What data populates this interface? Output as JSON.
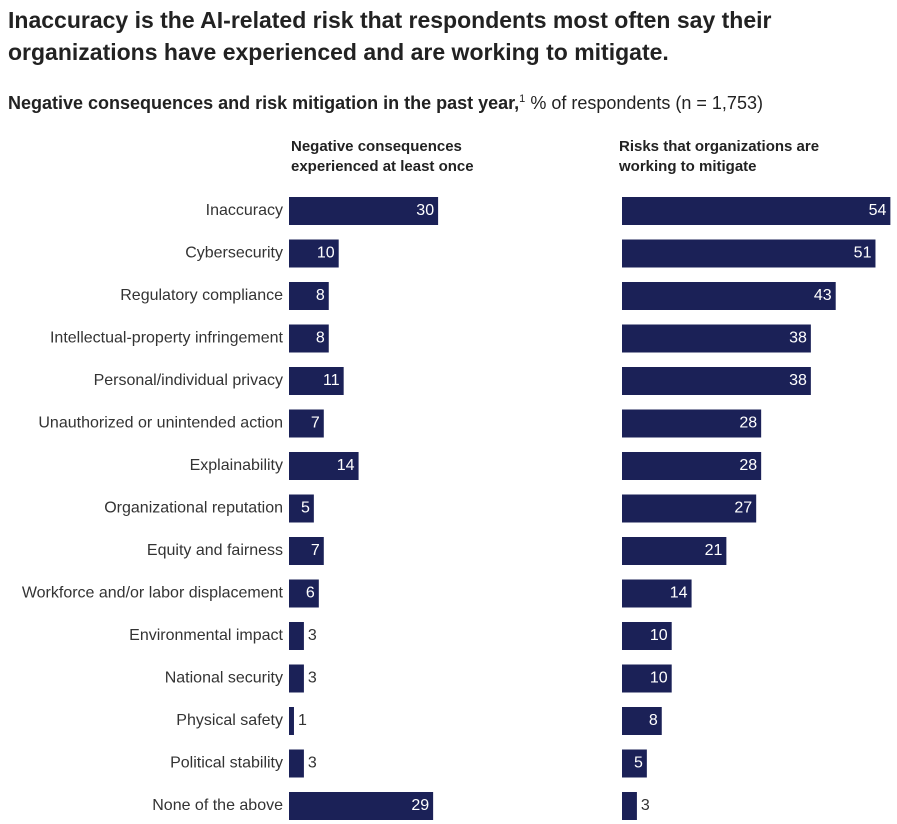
{
  "chart_data": {
    "type": "bar",
    "orientation": "horizontal",
    "title": "Inaccuracy is the AI-related risk that respondents most often say their organizations have experienced and are working to mitigate.",
    "subtitle": "Negative consequences and risk mitigation in the past year,",
    "subtitle_footnote": "1",
    "subtitle_units": "% of respondents (n = 1,753)",
    "categories": [
      "Inaccuracy",
      "Cybersecurity",
      "Regulatory compliance",
      "Intellectual-property infringement",
      "Personal/individual privacy",
      "Unauthorized or unintended action",
      "Explainability",
      "Organizational reputation",
      "Equity and fairness",
      "Workforce and/or labor displacement",
      "Environmental impact",
      "National security",
      "Physical safety",
      "Political stability",
      "None of the above"
    ],
    "series": [
      {
        "name": "Negative consequences experienced at least once",
        "color": "#1b2157",
        "values": [
          30,
          10,
          8,
          8,
          11,
          7,
          14,
          5,
          7,
          6,
          3,
          3,
          1,
          3,
          29
        ]
      },
      {
        "name": "Risks that organizations are working to mitigate",
        "color": "#1b2157",
        "values": [
          54,
          51,
          43,
          38,
          38,
          28,
          28,
          27,
          21,
          14,
          10,
          10,
          8,
          5,
          3
        ]
      }
    ]
  }
}
